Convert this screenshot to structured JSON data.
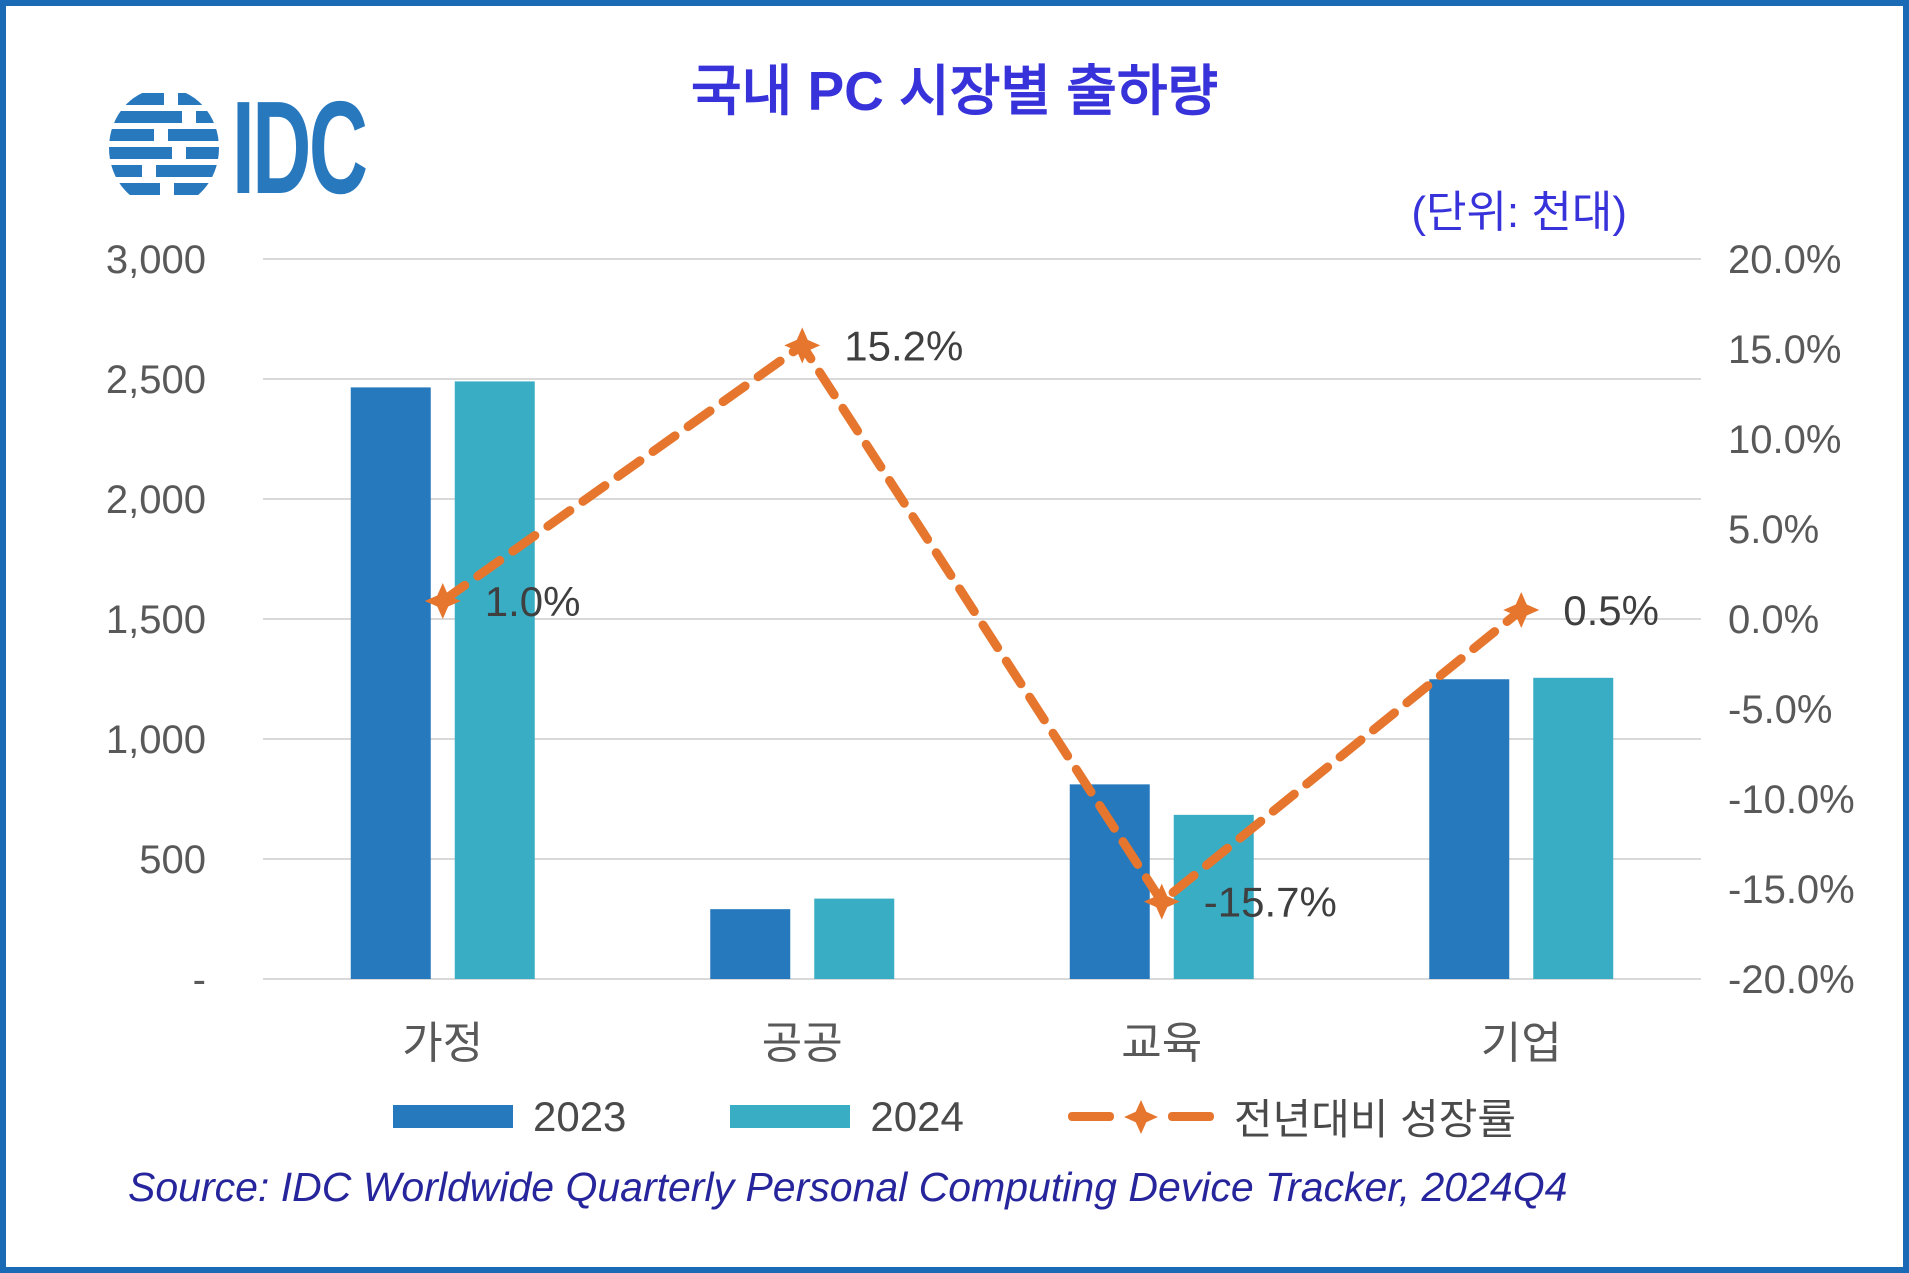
{
  "header": {
    "title": "국내 PC 시장별 출하량",
    "unit_label": "(단위: 천대)",
    "logo_text": "IDC"
  },
  "source": {
    "text": "Source: IDC Worldwide Quarterly Personal Computing Device Tracker, 2024Q4"
  },
  "colors": {
    "bar_2023": "#2679bd",
    "bar_2024": "#39adc4",
    "growth_line": "#e6762e",
    "title_blue": "#3732d9",
    "source_navy": "#26259c",
    "axis_text": "#595959",
    "gridline": "#d9d9d9",
    "frame_border": "#1a6ab5",
    "logo_blue": "#2878be"
  },
  "chart_data": {
    "type": "bar",
    "subtype": "combo-bar-line",
    "title": "국내 PC 시장별 출하량",
    "unit": "천대 (thousand units)",
    "categories": [
      "가정",
      "공공",
      "교육",
      "기업"
    ],
    "series": [
      {
        "name": "2023",
        "type": "bar",
        "axis": "left",
        "color": "#2679bd",
        "values": [
          2465,
          291,
          811,
          1249
        ]
      },
      {
        "name": "2024",
        "type": "bar",
        "axis": "left",
        "color": "#39adc4",
        "values": [
          2490,
          335,
          684,
          1255
        ]
      },
      {
        "name": "전년대비 성장률",
        "type": "line",
        "axis": "right",
        "color": "#e6762e",
        "values": [
          1.0,
          15.2,
          -15.7,
          0.5
        ],
        "labels": [
          "1.0%",
          "15.2%",
          "-15.7%",
          "0.5%"
        ]
      }
    ],
    "left_axis": {
      "min": 0,
      "max": 3000,
      "step": 500,
      "tick_labels": [
        "-",
        "500",
        "1,000",
        "1,500",
        "2,000",
        "2,500",
        "3,000"
      ]
    },
    "right_axis": {
      "min": -20,
      "max": 20,
      "step": 5,
      "tick_labels": [
        "-20.0%",
        "-15.0%",
        "-10.0%",
        "-5.0%",
        "0.0%",
        "5.0%",
        "10.0%",
        "15.0%",
        "20.0%"
      ]
    },
    "grid": "horizontal",
    "legend_position": "bottom"
  }
}
